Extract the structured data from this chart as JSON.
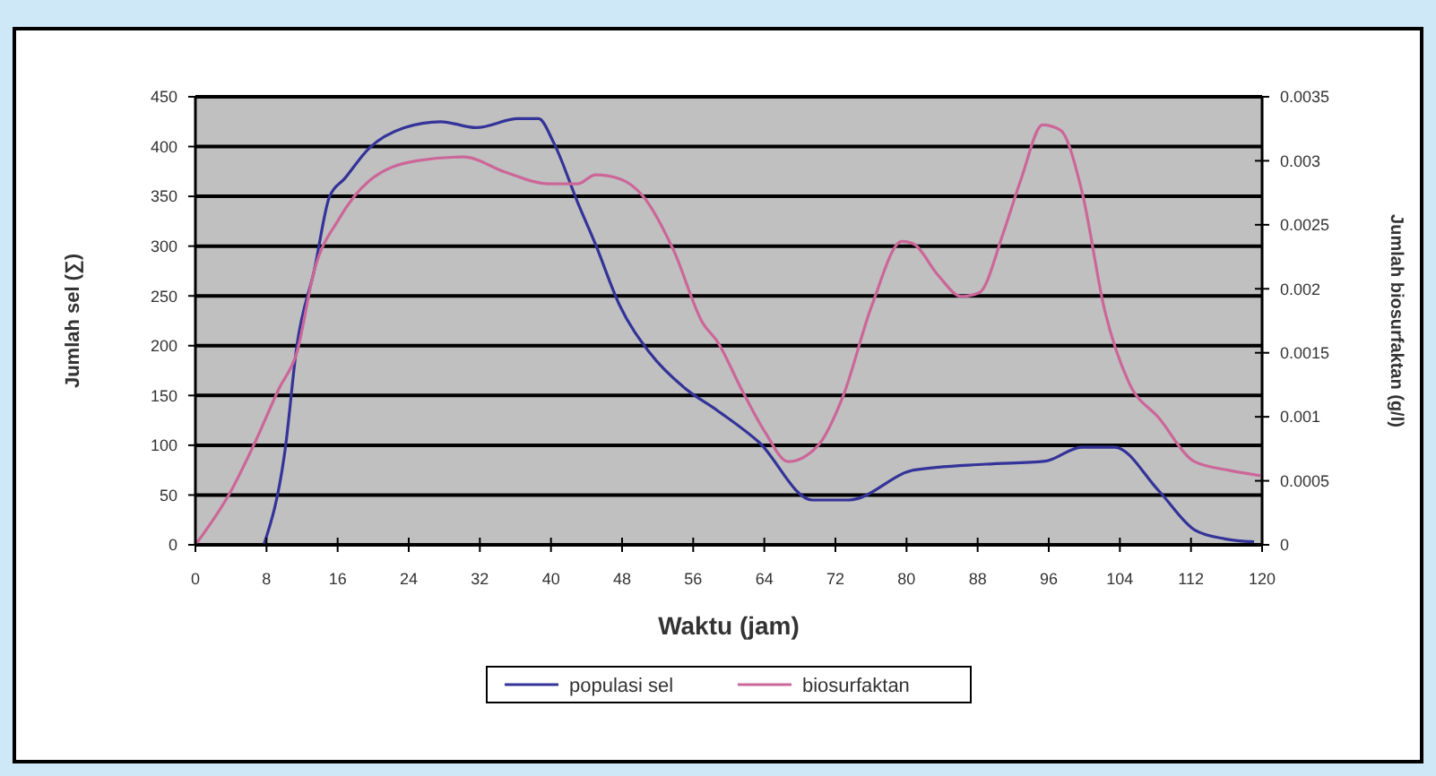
{
  "chart_data": {
    "type": "line",
    "xlabel": "Waktu (jam)",
    "ylabel": "Jumlah sel (∑)",
    "y2label": "Jumlah biosurfaktan (g/l)",
    "xlim": [
      0,
      120
    ],
    "xticks": [
      0,
      8,
      16,
      24,
      32,
      40,
      48,
      56,
      64,
      72,
      80,
      88,
      96,
      104,
      112,
      120
    ],
    "ylim": [
      0,
      450
    ],
    "yticks": [
      0,
      50,
      100,
      150,
      200,
      250,
      300,
      350,
      400,
      450
    ],
    "y2lim": [
      0,
      0.0035
    ],
    "y2ticks": [
      0,
      0.0005,
      0.001,
      0.0015,
      0.002,
      0.0025,
      0.003,
      0.0035
    ],
    "grid": "y",
    "legend": "bottom",
    "marker": "none",
    "line_style": "solid",
    "series": [
      {
        "name": "populasi sel",
        "color": "#333399",
        "x": [
          7.7,
          10.1,
          11.4,
          13.4,
          15.1,
          16.8,
          19.5,
          23.5,
          27.6,
          31.6,
          36.3,
          38.6,
          40.3,
          43,
          45,
          47.7,
          51.1,
          55.1,
          58.7,
          63.4,
          69.4,
          73.5,
          80.8,
          88.9,
          95.6,
          99.7,
          103.4,
          108.4,
          112.4,
          115.8,
          119.1
        ],
        "values": [
          0,
          96,
          199,
          277,
          350,
          368,
          398,
          419,
          425,
          419,
          428,
          428,
          404,
          344,
          302,
          241,
          193,
          157,
          135,
          103,
          45,
          45,
          75,
          81,
          84,
          98,
          98,
          54,
          15,
          6,
          3
        ]
      },
      {
        "name": "biosurfaktan",
        "color": "#cc6699",
        "axis": "y2",
        "x": [
          0,
          4,
          6.7,
          9.4,
          11.4,
          13.4,
          16.1,
          19.5,
          24.9,
          30.2,
          34.9,
          39.7,
          43,
          45,
          47.7,
          50.4,
          53.8,
          57.1,
          58.7,
          61.4,
          64,
          66.7,
          70.1,
          72.8,
          76.1,
          79.5,
          80.8,
          83.5,
          86.2,
          88.2,
          90.9,
          92.9,
          95.3,
          97.3,
          99.7,
          102.3,
          105,
          108.4,
          112.4,
          116.4,
          119.8
        ],
        "values": [
          0,
          0.00042,
          0.0008,
          0.00122,
          0.0015,
          0.00215,
          0.00254,
          0.00284,
          0.003,
          0.00303,
          0.00291,
          0.00282,
          0.00282,
          0.00289,
          0.00286,
          0.00272,
          0.0023,
          0.00173,
          0.00159,
          0.00122,
          0.00089,
          0.00065,
          0.00078,
          0.00115,
          0.00187,
          0.00237,
          0.00235,
          0.00211,
          0.00194,
          0.00197,
          0.00244,
          0.00286,
          0.00328,
          0.00324,
          0.00277,
          0.00183,
          0.00127,
          0.00099,
          0.00065,
          0.00058,
          0.00054
        ]
      }
    ]
  }
}
